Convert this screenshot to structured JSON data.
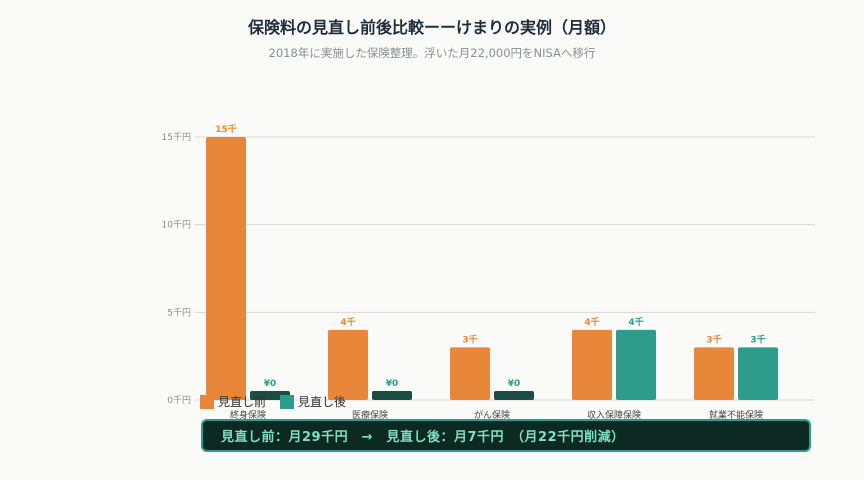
{
  "header": {
    "title": "保険料の見直し前後比較ーーけまりの実例（月額）",
    "subtitle": "2018年に実施した保険整理。浮いた月22,000円をNISAへ移行"
  },
  "colors": {
    "before": "#e8873a",
    "after": "#2e9c8a",
    "after_zero": "#1b4d45",
    "grid": "#d8d8d4",
    "axis_text": "#8a8f94"
  },
  "chart_data": {
    "type": "bar",
    "title": "保険料の見直し前後比較ーーけまりの実例（月額）",
    "categories": [
      "終身保険",
      "医療保険",
      "がん保険",
      "収入保障保険",
      "就業不能保険"
    ],
    "series": [
      {
        "name": "見直し前",
        "values": [
          15,
          4,
          3,
          4,
          3
        ],
        "labels": [
          "15千",
          "4千",
          "3千",
          "4千",
          "3千"
        ]
      },
      {
        "name": "見直し後",
        "values": [
          0,
          0,
          0,
          4,
          3
        ],
        "labels": [
          "¥0",
          "¥0",
          "¥0",
          "4千",
          "3千"
        ]
      }
    ],
    "y_ticks": [
      0,
      5,
      10,
      15
    ],
    "y_tick_labels": [
      "0千円",
      "5千円",
      "10千円",
      "15千円"
    ],
    "ylim": [
      0,
      15
    ],
    "grid": true,
    "legend": "bottom-left"
  },
  "legend": {
    "before_label": "見直し前",
    "after_label": "見直し後"
  },
  "summary": {
    "text": "見直し前：月29千円　→　見直し後：月7千円　（月22千円削減）"
  }
}
